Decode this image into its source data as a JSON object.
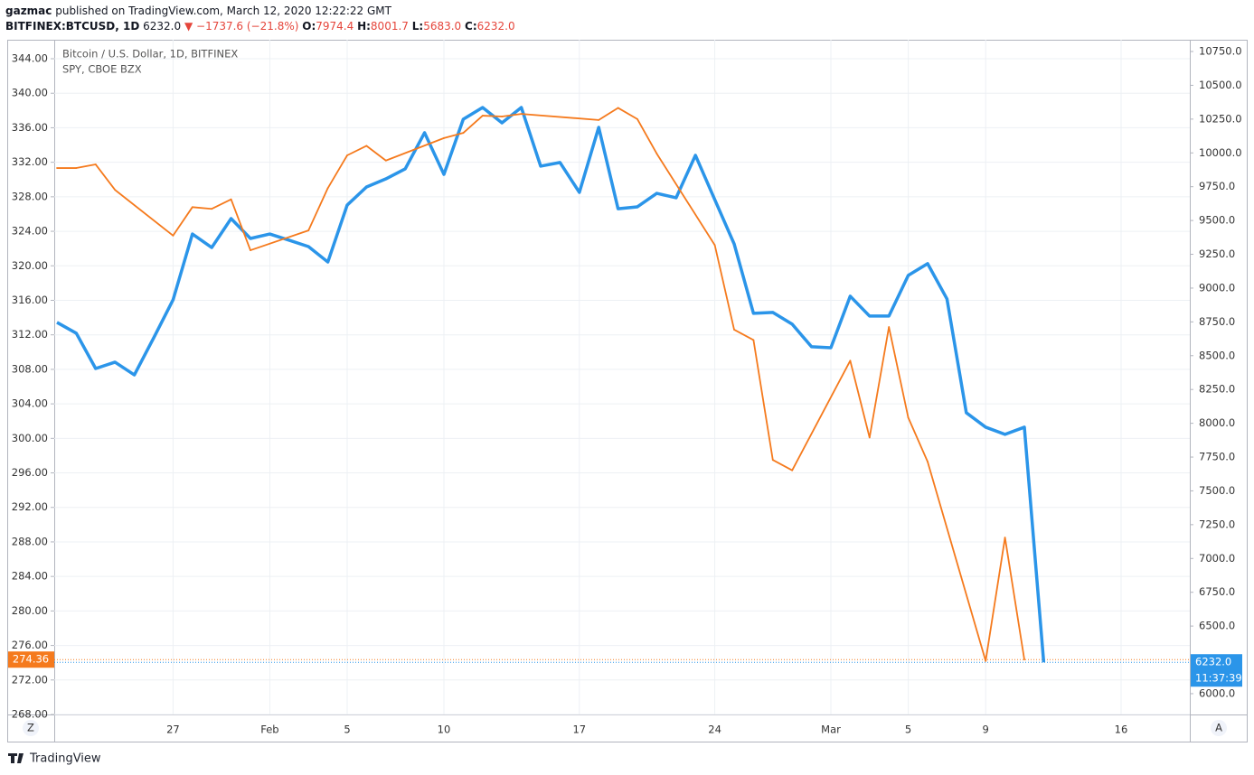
{
  "header": {
    "user": "gazmac",
    "published": "published on TradingView.com, March 12, 2020 12:22:22 GMT",
    "symbol": "BITFINEX:BTCUSD, 1D",
    "last": "6232.0",
    "arrow": "▼",
    "change": "−1737.6 (−21.8%)",
    "ohlc": [
      {
        "label": "O:",
        "value": "7974.4"
      },
      {
        "label": "H:",
        "value": "8001.7"
      },
      {
        "label": "L:",
        "value": "5683.0"
      },
      {
        "label": "C:",
        "value": "6232.0"
      }
    ]
  },
  "footer": {
    "brand": "TradingView",
    "left_button": "Z",
    "right_button": "A"
  },
  "chart_data": {
    "type": "line",
    "categories": [
      null,
      null,
      null,
      null,
      null,
      null,
      "27",
      null,
      null,
      null,
      null,
      "Feb",
      null,
      null,
      null,
      "5",
      null,
      null,
      null,
      null,
      "10",
      null,
      null,
      null,
      null,
      null,
      null,
      "17",
      null,
      null,
      null,
      null,
      null,
      null,
      "24",
      null,
      null,
      null,
      null,
      null,
      "Mar",
      null,
      null,
      null,
      "5",
      null,
      null,
      null,
      "9",
      null,
      null,
      null,
      null,
      null,
      null,
      "16",
      null,
      null
    ],
    "series": [
      {
        "name": "Bitcoin / U.S. Dollar, 1D, BITFINEX",
        "color": "#2b95e9",
        "axis": "y2",
        "values": [
          8746,
          8666,
          8405,
          8452,
          8358,
          8632,
          8913,
          9400,
          9300,
          9514,
          9367,
          9400,
          9354,
          9307,
          9193,
          9614,
          9748,
          9808,
          9882,
          10149,
          9841,
          10249,
          10336,
          10222,
          10336,
          9902,
          9929,
          9708,
          10189,
          9587,
          9601,
          9701,
          9668,
          9982,
          9654,
          9327,
          8813,
          8820,
          8733,
          8566,
          8559,
          8940,
          8793,
          8793,
          9094,
          9181,
          8920,
          8078,
          7971,
          7918,
          7971,
          6232,
          null,
          null,
          null,
          null,
          null,
          null
        ],
        "value_labels": [
          null,
          null,
          null,
          null,
          null,
          null,
          null,
          null,
          null,
          null,
          null,
          null,
          null,
          null,
          null,
          null,
          null,
          null,
          null,
          null,
          null,
          null,
          null,
          null,
          null,
          null,
          null,
          null,
          null,
          null,
          null,
          null,
          null,
          null,
          null,
          null,
          null,
          null,
          null,
          null,
          null,
          null,
          null,
          null,
          null,
          null,
          null,
          null,
          null,
          null,
          null,
          "6232.0",
          null,
          null,
          null,
          null,
          null,
          null
        ]
      },
      {
        "name": "SPY, CBOE BZX",
        "color": "#f57a1d",
        "axis": "y",
        "values": [
          331.33,
          331.33,
          331.75,
          328.8,
          null,
          null,
          323.5,
          326.8,
          326.6,
          327.7,
          321.8,
          null,
          null,
          324.1,
          329.0,
          332.8,
          333.9,
          332.2,
          null,
          null,
          334.8,
          335.4,
          337.4,
          337.3,
          337.6,
          null,
          null,
          null,
          336.9,
          338.3,
          337.0,
          333.0,
          null,
          null,
          322.4,
          312.6,
          311.4,
          297.5,
          296.3,
          null,
          null,
          309.0,
          300.1,
          312.9,
          302.4,
          297.3,
          null,
          null,
          274.2,
          288.5,
          274.36,
          null,
          null,
          null,
          null,
          null,
          null,
          null
        ]
      }
    ],
    "ylim": [
      268,
      346.2
    ],
    "yticks": [
      {
        "value": 268,
        "label": "268.00"
      },
      {
        "value": 272,
        "label": "272.00"
      },
      {
        "value": 276,
        "label": "276.00"
      },
      {
        "value": 280,
        "label": "280.00"
      },
      {
        "value": 284,
        "label": "284.00"
      },
      {
        "value": 288,
        "label": "288.00"
      },
      {
        "value": 292,
        "label": "292.00"
      },
      {
        "value": 296,
        "label": "296.00"
      },
      {
        "value": 300,
        "label": "300.00"
      },
      {
        "value": 304,
        "label": "304.00"
      },
      {
        "value": 308,
        "label": "308.00"
      },
      {
        "value": 312,
        "label": "312.00"
      },
      {
        "value": 316,
        "label": "316.00"
      },
      {
        "value": 320,
        "label": "320.00"
      },
      {
        "value": 324,
        "label": "324.00"
      },
      {
        "value": 328,
        "label": "328.00"
      },
      {
        "value": 332,
        "label": "332.00"
      },
      {
        "value": 336,
        "label": "336.00"
      },
      {
        "value": 340,
        "label": "340.00"
      },
      {
        "value": 344,
        "label": "344.00"
      }
    ],
    "y2lim": [
      5846,
      10837
    ],
    "y2ticks": [
      {
        "value": 6000,
        "label": "6000.0"
      },
      {
        "value": 6250,
        "label": "6250.0"
      },
      {
        "value": 6500,
        "label": "6500.0"
      },
      {
        "value": 6750,
        "label": "6750.0"
      },
      {
        "value": 7000,
        "label": "7000.0"
      },
      {
        "value": 7250,
        "label": "7250.0"
      },
      {
        "value": 7500,
        "label": "7500.0"
      },
      {
        "value": 7750,
        "label": "7750.0"
      },
      {
        "value": 8000,
        "label": "8000.0"
      },
      {
        "value": 8250,
        "label": "8250.0"
      },
      {
        "value": 8500,
        "label": "8500.0"
      },
      {
        "value": 8750,
        "label": "8750.0"
      },
      {
        "value": 9000,
        "label": "9000.0"
      },
      {
        "value": 9250,
        "label": "9250.0"
      },
      {
        "value": 9500,
        "label": "9500.0"
      },
      {
        "value": 9750,
        "label": "9750.0"
      },
      {
        "value": 10000,
        "label": "10000.0"
      },
      {
        "value": 10250,
        "label": "10250.0"
      },
      {
        "value": 10500,
        "label": "10500.0"
      },
      {
        "value": 10750,
        "label": "10750.0"
      }
    ],
    "countdown": "11:37:39",
    "grid": true
  }
}
